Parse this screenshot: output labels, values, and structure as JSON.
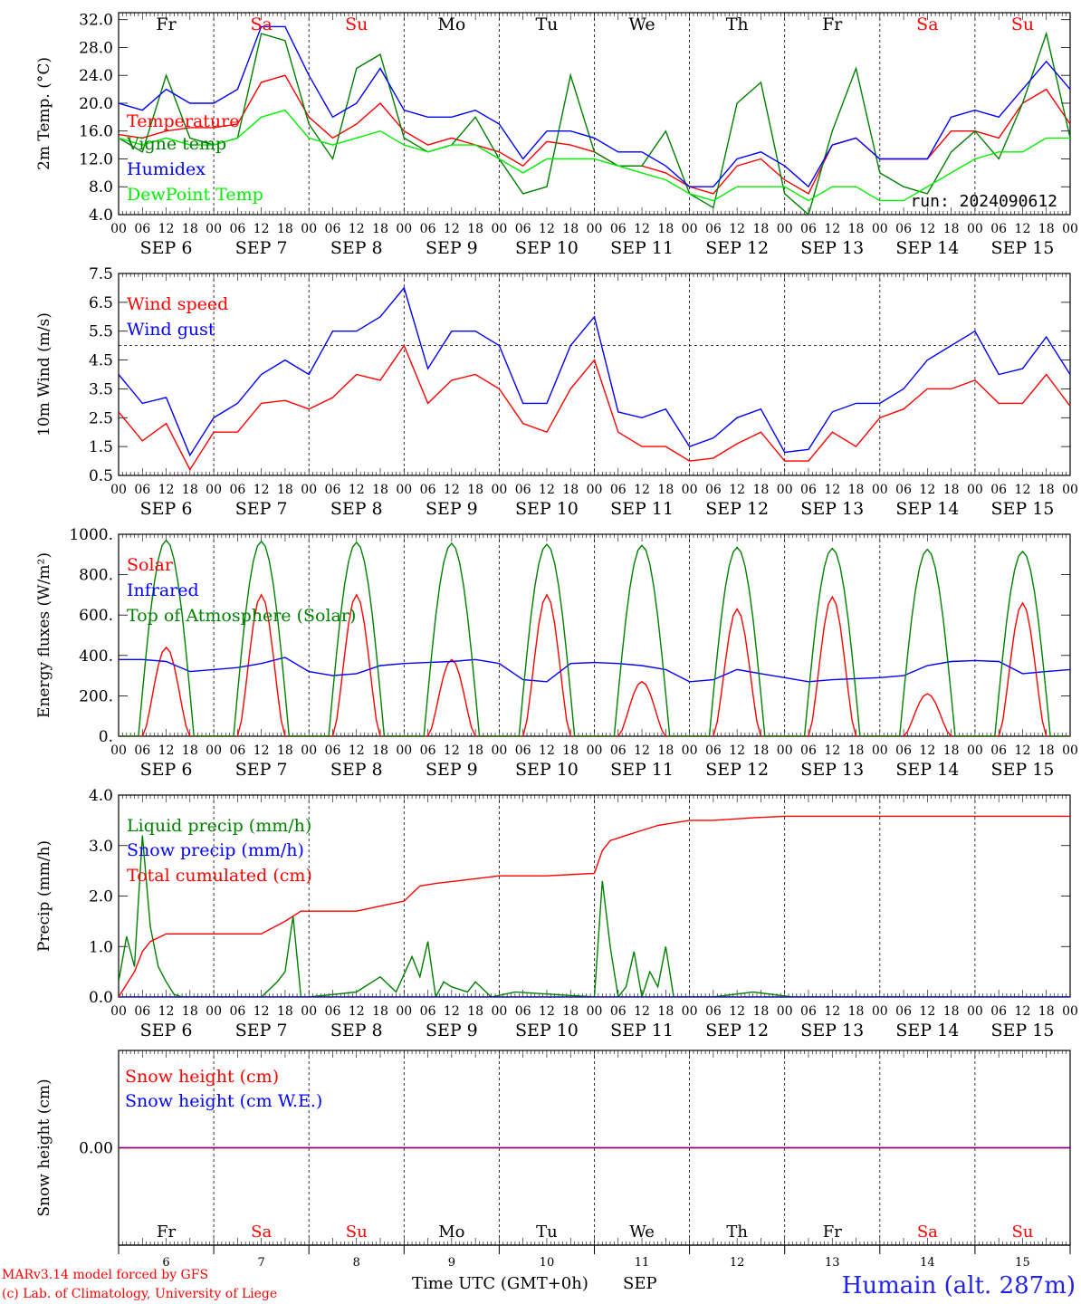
{
  "run_label": "run: 2024090612",
  "footer": {
    "model_line": "MARv3.14 model forced by GFS",
    "lab_line": "(c) Lab. of Climatology, University of Liege",
    "xaxis_label": "Time UTC (GMT+0h)",
    "month": "SEP",
    "station": "Humain (alt. 287m)"
  },
  "days": {
    "weekday_labels": [
      "Fr",
      "Sa",
      "Su",
      "Mo",
      "Tu",
      "We",
      "Th",
      "Fr",
      "Sa",
      "Su"
    ],
    "weekend_flags": [
      false,
      true,
      true,
      false,
      false,
      false,
      false,
      false,
      true,
      true
    ],
    "date_labels": [
      "SEP  6",
      "SEP  7",
      "SEP  8",
      "SEP  9",
      "SEP 10",
      "SEP 11",
      "SEP 12",
      "SEP 13",
      "SEP 14",
      "SEP 15"
    ],
    "day_numbers": [
      "6",
      "7",
      "8",
      "9",
      "10",
      "11",
      "12",
      "13",
      "14",
      "15"
    ],
    "hour_labels": [
      "00",
      "06",
      "12",
      "18"
    ],
    "final_hour_label": "00"
  },
  "colors": {
    "red": "#ff0000",
    "green": "#008000",
    "blue": "#0000ff",
    "lightgreen": "#00ee00",
    "weekend": "#ff0000",
    "purple": "#800080"
  },
  "chart_data": [
    {
      "type": "line",
      "ylabel": "2m Temp. (°C)",
      "ylim": [
        4,
        33
      ],
      "yticks": [
        4.0,
        8.0,
        12.0,
        16.0,
        20.0,
        24.0,
        28.0,
        32.0
      ],
      "ytick_labels": [
        "4.0",
        "8.0",
        "12.0",
        "16.0",
        "20.0",
        "24.0",
        "28.0",
        "32.0"
      ],
      "x_unit": "hours since SEP 6 00 UTC",
      "series": [
        {
          "name": "Temperature",
          "color": "#ff0000",
          "x": [
            0,
            6,
            12,
            18,
            24,
            30,
            36,
            42,
            48,
            54,
            60,
            66,
            72,
            78,
            84,
            90,
            96,
            102,
            108,
            114,
            120,
            126,
            132,
            138,
            144,
            150,
            156,
            162,
            168,
            174,
            180,
            186,
            192,
            198,
            204,
            210,
            216,
            222,
            228,
            234,
            240
          ],
          "y": [
            15.5,
            15,
            16,
            16.5,
            16.5,
            17,
            23,
            24,
            18,
            15,
            17,
            20,
            16,
            14,
            15,
            14,
            13,
            11,
            14.5,
            14,
            13,
            11,
            11,
            10,
            8,
            7,
            11,
            12,
            9,
            7,
            14,
            15,
            12,
            12,
            12,
            16,
            16,
            15,
            20,
            22,
            17
          ]
        },
        {
          "name": "Vigne temp",
          "color": "#008000",
          "x": [
            0,
            6,
            12,
            18,
            24,
            30,
            36,
            42,
            48,
            54,
            60,
            66,
            72,
            78,
            84,
            90,
            96,
            102,
            108,
            114,
            120,
            126,
            132,
            138,
            144,
            150,
            156,
            162,
            168,
            174,
            180,
            186,
            192,
            198,
            204,
            210,
            216,
            222,
            228,
            234,
            240
          ],
          "y": [
            15,
            13,
            24,
            15,
            14,
            15,
            30,
            29,
            17,
            12,
            25,
            27,
            15,
            13,
            14,
            18,
            12,
            7,
            8,
            24,
            13,
            11,
            11,
            16,
            7,
            5,
            20,
            23,
            7,
            4,
            16,
            25,
            10,
            8,
            7,
            13,
            16,
            12,
            20,
            30,
            15
          ]
        },
        {
          "name": "Humidex",
          "color": "#0000ff",
          "x": [
            0,
            6,
            12,
            18,
            24,
            30,
            36,
            42,
            48,
            54,
            60,
            66,
            72,
            78,
            84,
            90,
            96,
            102,
            108,
            114,
            120,
            126,
            132,
            138,
            144,
            150,
            156,
            162,
            168,
            174,
            180,
            186,
            192,
            198,
            204,
            210,
            216,
            222,
            228,
            234,
            240
          ],
          "y": [
            20,
            19,
            22,
            20,
            20,
            22,
            31,
            31,
            24,
            18,
            20,
            25,
            19,
            18,
            18,
            19,
            17,
            12,
            16,
            16,
            15,
            13,
            13,
            11,
            8,
            8,
            12,
            13,
            11,
            8,
            14,
            15,
            12,
            12,
            12,
            18,
            19,
            18,
            22,
            26,
            22
          ]
        },
        {
          "name": "DewPoint Temp",
          "color": "#00ee00",
          "x": [
            0,
            6,
            12,
            18,
            24,
            30,
            36,
            42,
            48,
            54,
            60,
            66,
            72,
            78,
            84,
            90,
            96,
            102,
            108,
            114,
            120,
            126,
            132,
            138,
            144,
            150,
            156,
            162,
            168,
            174,
            180,
            186,
            192,
            198,
            204,
            210,
            216,
            222,
            228,
            234,
            240
          ],
          "y": [
            15,
            14,
            15,
            14,
            14,
            15,
            18,
            19,
            15,
            14,
            15,
            16,
            14,
            13,
            14,
            14,
            12,
            10,
            12,
            12,
            12,
            11,
            10,
            9,
            7,
            6,
            8,
            8,
            8,
            6,
            8,
            8,
            6,
            6,
            8,
            10,
            12,
            13,
            13,
            15,
            15
          ]
        }
      ]
    },
    {
      "type": "line",
      "ylabel": "10m Wind (m/s)",
      "ylim": [
        0.5,
        7.5
      ],
      "yticks": [
        0.5,
        1.5,
        2.5,
        3.5,
        4.5,
        5.5,
        6.5,
        7.5
      ],
      "ytick_labels": [
        "0.5",
        "1.5",
        "2.5",
        "3.5",
        "4.5",
        "5.5",
        "6.5",
        "7.5"
      ],
      "reference_line": 5.0,
      "series": [
        {
          "name": "Wind speed",
          "color": "#ff0000",
          "x": [
            0,
            6,
            12,
            18,
            24,
            30,
            36,
            42,
            48,
            54,
            60,
            66,
            72,
            78,
            84,
            90,
            96,
            102,
            108,
            114,
            120,
            126,
            132,
            138,
            144,
            150,
            156,
            162,
            168,
            174,
            180,
            186,
            192,
            198,
            204,
            210,
            216,
            222,
            228,
            234,
            240
          ],
          "y": [
            2.7,
            1.7,
            2.3,
            0.7,
            2,
            2,
            3,
            3.1,
            2.8,
            3.2,
            4,
            3.8,
            5,
            3,
            3.8,
            4,
            3.5,
            2.3,
            2,
            3.5,
            4.5,
            2,
            1.5,
            1.5,
            1,
            1.1,
            1.6,
            2,
            1,
            1,
            2,
            1.5,
            2.5,
            2.8,
            3.5,
            3.5,
            3.8,
            3,
            3,
            4,
            2.9
          ]
        },
        {
          "name": "Wind gust",
          "color": "#0000ff",
          "x": [
            0,
            6,
            12,
            18,
            24,
            30,
            36,
            42,
            48,
            54,
            60,
            66,
            72,
            78,
            84,
            90,
            96,
            102,
            108,
            114,
            120,
            126,
            132,
            138,
            144,
            150,
            156,
            162,
            168,
            174,
            180,
            186,
            192,
            198,
            204,
            210,
            216,
            222,
            228,
            234,
            240
          ],
          "y": [
            4,
            3,
            3.2,
            1.2,
            2.5,
            3,
            4,
            4.5,
            4,
            5.5,
            5.5,
            6,
            7,
            4.2,
            5.5,
            5.5,
            5,
            3,
            3,
            5,
            6,
            2.7,
            2.5,
            2.8,
            1.5,
            1.8,
            2.5,
            2.8,
            1.3,
            1.4,
            2.7,
            3,
            3,
            3.5,
            4.5,
            5,
            5.5,
            4,
            4.2,
            5.3,
            4
          ]
        }
      ]
    },
    {
      "type": "line",
      "ylabel": "Energy fluxes (W/m²)",
      "ylim": [
        0,
        1000
      ],
      "yticks": [
        0,
        200,
        400,
        600,
        800,
        1000
      ],
      "ytick_labels": [
        "0.",
        "200.",
        "400.",
        "600.",
        "800.",
        "1000."
      ],
      "series": [
        {
          "name": "Solar",
          "color": "#ff0000",
          "daily_peaks": [
            440,
            700,
            700,
            380,
            700,
            270,
            630,
            690,
            210,
            660
          ]
        },
        {
          "name": "Infrared",
          "color": "#0000ff",
          "x": [
            0,
            6,
            12,
            18,
            24,
            30,
            36,
            42,
            48,
            54,
            60,
            66,
            72,
            78,
            84,
            90,
            96,
            102,
            108,
            114,
            120,
            126,
            132,
            138,
            144,
            150,
            156,
            162,
            168,
            174,
            180,
            186,
            192,
            198,
            204,
            210,
            216,
            222,
            228,
            234,
            240
          ],
          "y": [
            380,
            380,
            370,
            320,
            330,
            340,
            360,
            390,
            320,
            300,
            310,
            350,
            360,
            365,
            370,
            380,
            360,
            280,
            270,
            360,
            365,
            360,
            350,
            330,
            270,
            280,
            330,
            310,
            290,
            270,
            280,
            285,
            290,
            300,
            350,
            370,
            375,
            370,
            310,
            320,
            330
          ]
        },
        {
          "name": "Top of Atmosphere (Solar)",
          "color": "#008000",
          "daily_peaks": [
            970,
            965,
            960,
            955,
            950,
            945,
            935,
            930,
            925,
            915
          ]
        }
      ]
    },
    {
      "type": "line",
      "ylabel": "Precip (mm/h)",
      "ylim": [
        0,
        4.0
      ],
      "yticks": [
        0,
        1.0,
        2.0,
        3.0,
        4.0
      ],
      "ytick_labels": [
        "0.0",
        "1.0",
        "2.0",
        "3.0",
        "4.0"
      ],
      "series": [
        {
          "name": "Liquid precip (mm/h)",
          "color": "#008000",
          "x": [
            0,
            2,
            4,
            6,
            8,
            10,
            12,
            14,
            16,
            18,
            36,
            40,
            42,
            44,
            46,
            48,
            60,
            66,
            70,
            74,
            76,
            78,
            80,
            82,
            84,
            88,
            90,
            94,
            100,
            120,
            122,
            124,
            126,
            128,
            130,
            132,
            134,
            136,
            138,
            140,
            142,
            144,
            150,
            160,
            170,
            180,
            240
          ],
          "y": [
            0.3,
            1.2,
            0.6,
            3.2,
            1.4,
            0.6,
            0.3,
            0.05,
            0,
            0,
            0,
            0.3,
            0.5,
            1.6,
            0,
            0,
            0.1,
            0.4,
            0.1,
            0.8,
            0.4,
            1.1,
            0,
            0.3,
            0.2,
            0.1,
            0.3,
            0,
            0.1,
            0,
            2.3,
            1,
            0,
            0.2,
            0.9,
            0,
            0.5,
            0.2,
            1.0,
            0,
            0,
            0,
            0,
            0.1,
            0,
            0,
            0
          ]
        },
        {
          "name": "Snow precip (mm/h)",
          "color": "#0000ff",
          "x": [
            0,
            240
          ],
          "y": [
            0,
            0
          ]
        },
        {
          "name": "Total cumulated (cm)",
          "color": "#ff0000",
          "x": [
            0,
            4,
            6,
            8,
            12,
            36,
            42,
            46,
            48,
            60,
            66,
            72,
            76,
            80,
            96,
            108,
            120,
            122,
            124,
            128,
            132,
            136,
            144,
            150,
            160,
            168,
            240
          ],
          "y": [
            0,
            0.5,
            0.9,
            1.1,
            1.25,
            1.25,
            1.5,
            1.7,
            1.7,
            1.7,
            1.8,
            1.9,
            2.2,
            2.25,
            2.4,
            2.4,
            2.45,
            2.9,
            3.1,
            3.2,
            3.3,
            3.4,
            3.5,
            3.5,
            3.55,
            3.58,
            3.58
          ]
        }
      ]
    },
    {
      "type": "line",
      "ylabel": "Snow height (cm)",
      "ylim": [
        -1,
        1
      ],
      "yticks": [
        0
      ],
      "ytick_labels": [
        "0.00"
      ],
      "series": [
        {
          "name": "Snow height (cm)",
          "color": "#ff0000",
          "x": [
            0,
            240
          ],
          "y": [
            0,
            0
          ]
        },
        {
          "name": "Snow height (cm W.E.)",
          "color": "#0000ff",
          "x": [
            0,
            240
          ],
          "y": [
            0,
            0
          ]
        }
      ]
    }
  ]
}
